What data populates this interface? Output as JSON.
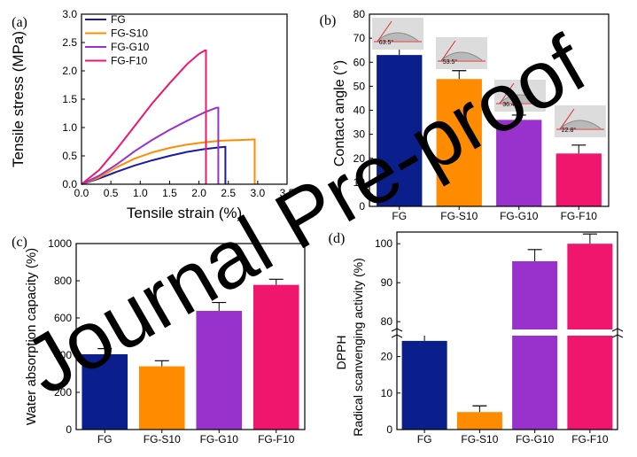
{
  "chart_data": [
    {
      "type": "line",
      "panel_label": "(a)",
      "xlabel": "Tensile strain (%)",
      "ylabel": "Tensile stress (MPa)",
      "xlim": [
        0.0,
        3.5
      ],
      "ylim": [
        0.0,
        3.0
      ],
      "xticks": [
        "0.0",
        "0.5",
        "1.0",
        "1.5",
        "2.0",
        "2.5",
        "3.0",
        "3.5"
      ],
      "yticks": [
        "0.0",
        "0.5",
        "1.0",
        "1.5",
        "2.0",
        "2.5",
        "3.0"
      ],
      "legend_position": "top-left",
      "series": [
        {
          "name": "FG",
          "color": "#1a1aa6",
          "x": [
            0,
            0.3,
            0.6,
            0.9,
            1.2,
            1.5,
            1.8,
            2.1,
            2.35,
            2.45,
            2.45
          ],
          "y": [
            0,
            0.1,
            0.22,
            0.33,
            0.42,
            0.5,
            0.57,
            0.62,
            0.65,
            0.66,
            0.0
          ]
        },
        {
          "name": "FG-S10",
          "color": "#ff8c00",
          "x": [
            0,
            0.3,
            0.6,
            0.9,
            1.2,
            1.5,
            1.8,
            2.1,
            2.4,
            2.7,
            2.95,
            2.95
          ],
          "y": [
            0,
            0.12,
            0.3,
            0.45,
            0.56,
            0.64,
            0.7,
            0.74,
            0.77,
            0.78,
            0.79,
            0.0
          ]
        },
        {
          "name": "FG-G10",
          "color": "#9932cc",
          "x": [
            0,
            0.3,
            0.6,
            0.9,
            1.2,
            1.5,
            1.8,
            2.1,
            2.3,
            2.33,
            2.33
          ],
          "y": [
            0,
            0.15,
            0.35,
            0.58,
            0.78,
            0.96,
            1.12,
            1.27,
            1.35,
            1.35,
            0.0
          ]
        },
        {
          "name": "FG-F10",
          "color": "#f0166e",
          "x": [
            0,
            0.3,
            0.6,
            0.9,
            1.2,
            1.5,
            1.8,
            2.0,
            2.1,
            2.12,
            2.12
          ],
          "y": [
            0,
            0.25,
            0.62,
            1.02,
            1.42,
            1.78,
            2.12,
            2.3,
            2.36,
            2.36,
            0.0
          ]
        }
      ]
    },
    {
      "type": "bar",
      "panel_label": "(b)",
      "xlabel": "",
      "ylabel": "Contact angle (°)",
      "ylim": [
        0,
        80
      ],
      "yticks": [
        "0",
        "10",
        "20",
        "30",
        "40",
        "50",
        "60",
        "70",
        "80"
      ],
      "categories": [
        "FG",
        "FG-S10",
        "FG-G10",
        "FG-F10"
      ],
      "values": [
        63,
        53,
        36,
        22
      ],
      "errors": [
        2.5,
        3.5,
        2.0,
        3.5
      ],
      "colors": [
        "#0a1e8c",
        "#ff8c00",
        "#9932cc",
        "#f0166e"
      ],
      "inset_labels": [
        "63.5°",
        "53.5°",
        "36.4",
        "22.8°"
      ]
    },
    {
      "type": "bar",
      "panel_label": "(c)",
      "xlabel": "",
      "ylabel": "Water absorption capacity (%)",
      "ylim": [
        0,
        1000
      ],
      "yticks": [
        "0",
        "200",
        "400",
        "600",
        "800",
        "1000"
      ],
      "categories": [
        "FG",
        "FG-S10",
        "FG-G10",
        "FG-F10"
      ],
      "values": [
        405,
        340,
        638,
        778
      ],
      "errors": [
        30,
        30,
        45,
        30
      ],
      "colors": [
        "#0a1e8c",
        "#ff8c00",
        "#9932cc",
        "#f0166e"
      ]
    },
    {
      "type": "bar",
      "panel_label": "(d)",
      "xlabel": "",
      "ylabel": "Radical scanvenging activity (%)",
      "ylabel_top": "DPPH",
      "axis_break": [
        25,
        78
      ],
      "ylim": [
        0,
        103
      ],
      "yticks": [
        "0",
        "10",
        "20",
        "80",
        "90",
        "100"
      ],
      "categories": [
        "FG",
        "FG-S10",
        "FG-G10",
        "FG-F10"
      ],
      "values": [
        24.3,
        4.8,
        95.5,
        100
      ],
      "errors": [
        1.5,
        1.7,
        3.0,
        2.5
      ],
      "colors": [
        "#0a1e8c",
        "#ff8c00",
        "#9932cc",
        "#f0166e"
      ]
    }
  ],
  "watermark": "Journal Pre-proof"
}
